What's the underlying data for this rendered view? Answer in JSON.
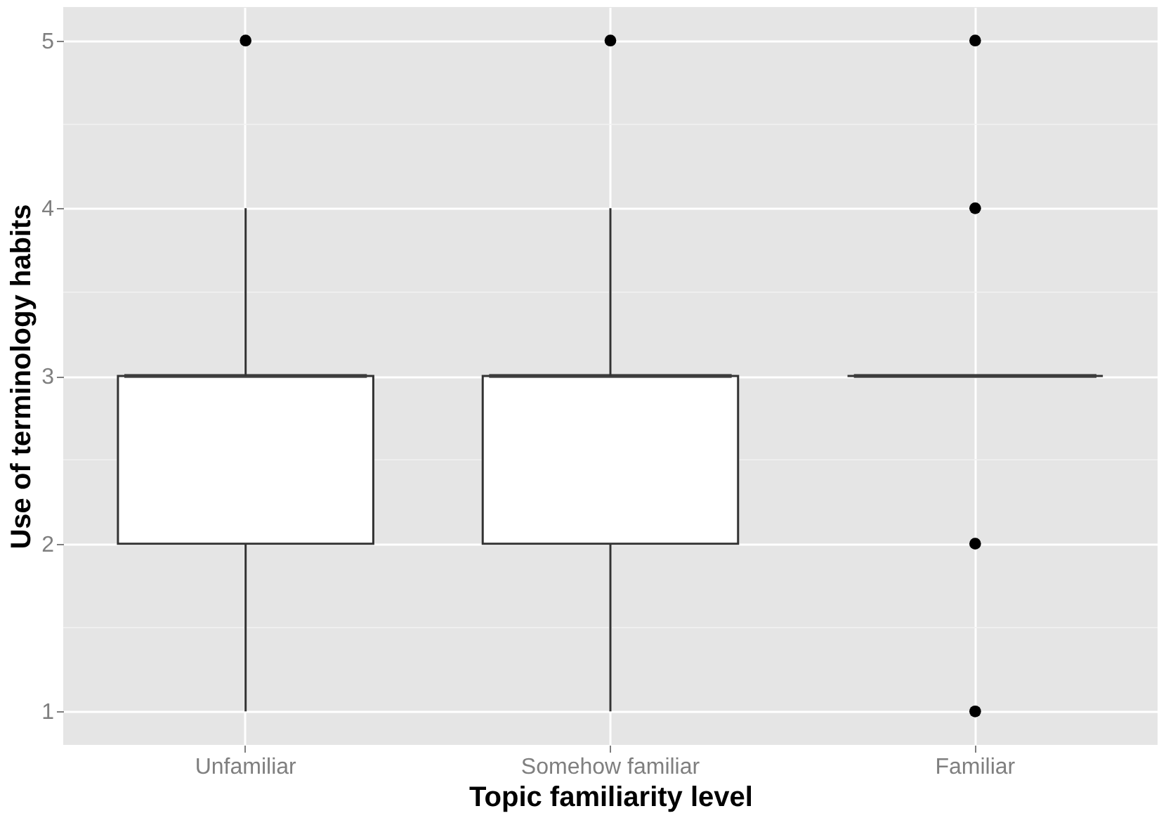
{
  "chart_data": {
    "type": "box",
    "xlabel": "Topic familiarity level",
    "ylabel": "Use of terminology habits",
    "categories": [
      "Unfamiliar",
      "Somehow familiar",
      "Familiar"
    ],
    "boxes": [
      {
        "low": 1,
        "q1": 2,
        "median": 3,
        "q3": 3,
        "high": 4,
        "outliers": [
          5
        ]
      },
      {
        "low": 1,
        "q1": 2,
        "median": 3,
        "q3": 3,
        "high": 4,
        "outliers": [
          5
        ]
      },
      {
        "low": 3,
        "q1": 3,
        "median": 3,
        "q3": 3,
        "high": 3,
        "outliers": [
          1,
          2,
          4,
          5
        ]
      }
    ],
    "ylim": [
      0.8,
      5.2
    ],
    "yticks": [
      1,
      2,
      3,
      4,
      5
    ],
    "grid": true
  }
}
